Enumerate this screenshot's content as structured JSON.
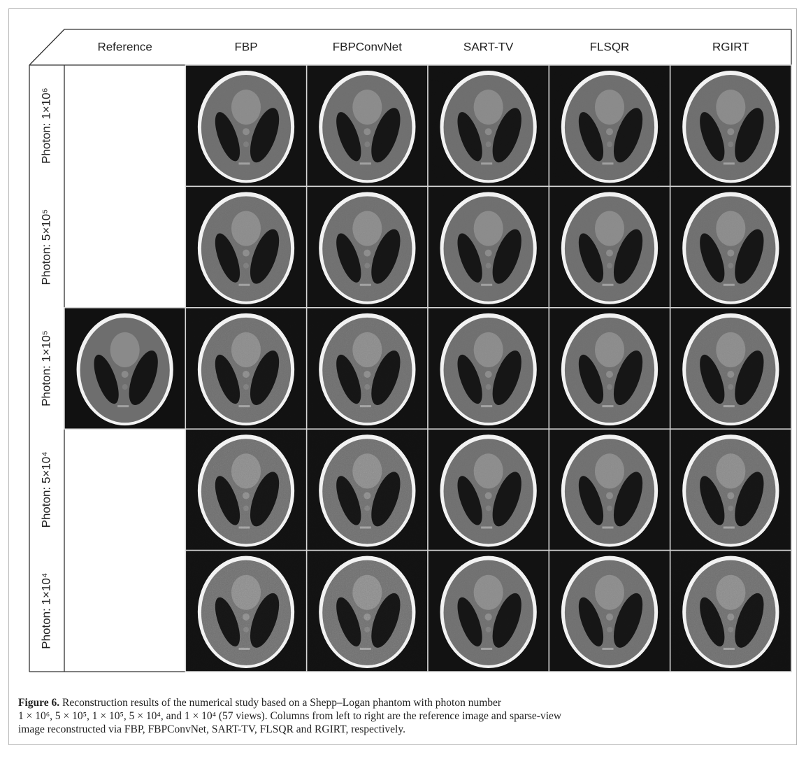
{
  "table": {
    "columns": [
      "Reference",
      "FBP",
      "FBPConvNet",
      "SART-TV",
      "FLSQR",
      "RGIRT"
    ],
    "rows": [
      "Photon: 1×10⁶",
      "Photon: 5×10⁵",
      "Photon: 1×10⁵",
      "Photon: 5×10⁴",
      "Photon: 1×10⁴"
    ]
  },
  "caption": {
    "label": "Figure 6.",
    "lines": [
      "Reconstruction results of the numerical study based on a Shepp–Logan phantom with photon number",
      "1 × 10⁶, 5 × 10⁵, 1 × 10⁵, 5 × 10⁴, and 1 × 10⁴ (57 views). Columns from left to right are the reference image and sparse-view",
      "image reconstructed via FBP, FBPConvNet, SART-TV, FLSQR and RGIRT, respectively."
    ]
  }
}
